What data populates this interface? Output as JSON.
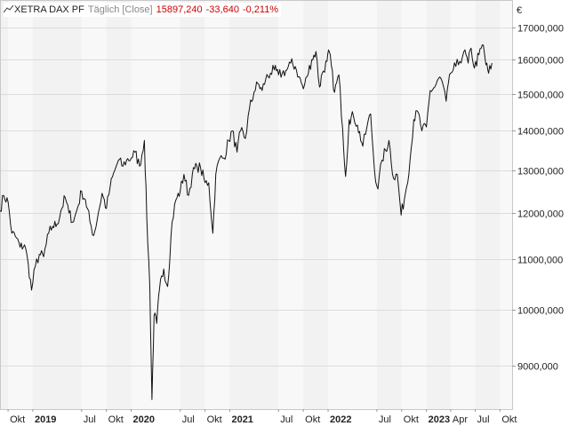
{
  "legend": {
    "instrument": "XETRA DAX PF",
    "interval": "Täglich [Close]",
    "last": "15897,240",
    "change": "-33,640",
    "change_pct": "-0,211%",
    "change_color": "#cc0000"
  },
  "chart_data": {
    "type": "line",
    "title": "XETRA DAX PF",
    "ylabel": "",
    "unit_label": "€",
    "y_scale": "log",
    "ylim": [
      8300,
      17900
    ],
    "xlim": [
      "2018-09-01",
      "2023-11-15"
    ],
    "grid": true,
    "y_ticks": [
      {
        "value": 9000,
        "label": "9000,000"
      },
      {
        "value": 10000,
        "label": "10000,000"
      },
      {
        "value": 11000,
        "label": "11000,000"
      },
      {
        "value": 12000,
        "label": "12000,000"
      },
      {
        "value": 13000,
        "label": "13000,000"
      },
      {
        "value": 14000,
        "label": "14000,000"
      },
      {
        "value": 15000,
        "label": "15000,000"
      },
      {
        "value": 16000,
        "label": "16000,000"
      },
      {
        "value": 17000,
        "label": "17000,000"
      }
    ],
    "x_ticks": [
      {
        "date": "2018-10-01",
        "label": "Okt",
        "bold": false
      },
      {
        "date": "2019-01-01",
        "label": "2019",
        "bold": true
      },
      {
        "date": "2019-07-01",
        "label": "Jul",
        "bold": false
      },
      {
        "date": "2019-10-01",
        "label": "Okt",
        "bold": false
      },
      {
        "date": "2020-01-01",
        "label": "2020",
        "bold": true
      },
      {
        "date": "2020-07-01",
        "label": "Jul",
        "bold": false
      },
      {
        "date": "2020-10-01",
        "label": "Okt",
        "bold": false
      },
      {
        "date": "2021-01-01",
        "label": "2021",
        "bold": true
      },
      {
        "date": "2021-07-01",
        "label": "Jul",
        "bold": false
      },
      {
        "date": "2021-10-01",
        "label": "Okt",
        "bold": false
      },
      {
        "date": "2022-01-01",
        "label": "2022",
        "bold": true
      },
      {
        "date": "2022-07-01",
        "label": "Jul",
        "bold": false
      },
      {
        "date": "2022-10-01",
        "label": "Okt",
        "bold": false
      },
      {
        "date": "2023-01-01",
        "label": "2023",
        "bold": true
      },
      {
        "date": "2023-04-01",
        "label": "Apr",
        "bold": false
      },
      {
        "date": "2023-07-01",
        "label": "Jul",
        "bold": false
      },
      {
        "date": "2023-10-01",
        "label": "Okt",
        "bold": false
      }
    ],
    "series": [
      {
        "color": "#111111",
        "points": [
          [
            "2018-09-01",
            12050
          ],
          [
            "2018-09-15",
            12400
          ],
          [
            "2018-10-01",
            12250
          ],
          [
            "2018-10-15",
            11550
          ],
          [
            "2018-11-01",
            11450
          ],
          [
            "2018-11-15",
            11250
          ],
          [
            "2018-12-01",
            11300
          ],
          [
            "2018-12-15",
            10900
          ],
          [
            "2018-12-27",
            10380
          ],
          [
            "2019-01-10",
            10850
          ],
          [
            "2019-01-25",
            11100
          ],
          [
            "2019-02-10",
            11050
          ],
          [
            "2019-03-01",
            11550
          ],
          [
            "2019-03-15",
            11700
          ],
          [
            "2019-04-01",
            11750
          ],
          [
            "2019-04-15",
            12050
          ],
          [
            "2019-05-01",
            12350
          ],
          [
            "2019-05-15",
            12000
          ],
          [
            "2019-06-01",
            11800
          ],
          [
            "2019-06-15",
            12100
          ],
          [
            "2019-07-01",
            12500
          ],
          [
            "2019-07-15",
            12300
          ],
          [
            "2019-08-01",
            11800
          ],
          [
            "2019-08-15",
            11500
          ],
          [
            "2019-09-01",
            12000
          ],
          [
            "2019-09-15",
            12450
          ],
          [
            "2019-10-01",
            12100
          ],
          [
            "2019-10-15",
            12600
          ],
          [
            "2019-11-01",
            13000
          ],
          [
            "2019-11-15",
            13250
          ],
          [
            "2019-12-01",
            13100
          ],
          [
            "2019-12-15",
            13250
          ],
          [
            "2020-01-01",
            13300
          ],
          [
            "2020-01-15",
            13450
          ],
          [
            "2020-02-01",
            13100
          ],
          [
            "2020-02-19",
            13750
          ],
          [
            "2020-02-28",
            11900
          ],
          [
            "2020-03-10",
            10450
          ],
          [
            "2020-03-18",
            8450
          ],
          [
            "2020-03-26",
            9900
          ],
          [
            "2020-04-05",
            9750
          ],
          [
            "2020-04-15",
            10400
          ],
          [
            "2020-05-01",
            10800
          ],
          [
            "2020-05-15",
            10450
          ],
          [
            "2020-06-01",
            11800
          ],
          [
            "2020-06-15",
            12300
          ],
          [
            "2020-07-01",
            12500
          ],
          [
            "2020-07-15",
            12900
          ],
          [
            "2020-08-01",
            12400
          ],
          [
            "2020-08-15",
            12900
          ],
          [
            "2020-09-01",
            13100
          ],
          [
            "2020-09-15",
            13050
          ],
          [
            "2020-10-01",
            12700
          ],
          [
            "2020-10-15",
            12700
          ],
          [
            "2020-10-30",
            11550
          ],
          [
            "2020-11-10",
            12900
          ],
          [
            "2020-11-25",
            13300
          ],
          [
            "2020-12-10",
            13300
          ],
          [
            "2020-12-28",
            13750
          ],
          [
            "2021-01-10",
            14000
          ],
          [
            "2021-01-28",
            13450
          ],
          [
            "2021-02-10",
            14000
          ],
          [
            "2021-02-28",
            13800
          ],
          [
            "2021-03-15",
            14600
          ],
          [
            "2021-04-01",
            15050
          ],
          [
            "2021-04-15",
            15300
          ],
          [
            "2021-05-01",
            15100
          ],
          [
            "2021-05-15",
            15450
          ],
          [
            "2021-06-01",
            15600
          ],
          [
            "2021-06-15",
            15700
          ],
          [
            "2021-07-01",
            15550
          ],
          [
            "2021-07-15",
            15600
          ],
          [
            "2021-08-01",
            15700
          ],
          [
            "2021-08-15",
            15900
          ],
          [
            "2021-09-01",
            15800
          ],
          [
            "2021-09-15",
            15500
          ],
          [
            "2021-10-01",
            15150
          ],
          [
            "2021-10-15",
            15500
          ],
          [
            "2021-11-01",
            16000
          ],
          [
            "2021-11-17",
            16250
          ],
          [
            "2021-11-30",
            15200
          ],
          [
            "2021-12-10",
            15600
          ],
          [
            "2021-12-28",
            15950
          ],
          [
            "2022-01-05",
            16250
          ],
          [
            "2022-01-25",
            15050
          ],
          [
            "2022-02-10",
            15550
          ],
          [
            "2022-02-24",
            14050
          ],
          [
            "2022-03-07",
            12850
          ],
          [
            "2022-03-20",
            14300
          ],
          [
            "2022-04-05",
            14400
          ],
          [
            "2022-04-20",
            14150
          ],
          [
            "2022-05-10",
            13600
          ],
          [
            "2022-05-25",
            14100
          ],
          [
            "2022-06-08",
            14450
          ],
          [
            "2022-06-22",
            13000
          ],
          [
            "2022-07-05",
            12550
          ],
          [
            "2022-07-20",
            13250
          ],
          [
            "2022-08-15",
            13750
          ],
          [
            "2022-09-01",
            12800
          ],
          [
            "2022-09-15",
            12900
          ],
          [
            "2022-09-29",
            11950
          ],
          [
            "2022-10-15",
            12450
          ],
          [
            "2022-11-01",
            13250
          ],
          [
            "2022-11-15",
            14300
          ],
          [
            "2022-12-01",
            14500
          ],
          [
            "2022-12-15",
            14000
          ],
          [
            "2023-01-01",
            14100
          ],
          [
            "2023-01-15",
            15100
          ],
          [
            "2023-02-01",
            15200
          ],
          [
            "2023-02-15",
            15450
          ],
          [
            "2023-03-01",
            15350
          ],
          [
            "2023-03-15",
            14800
          ],
          [
            "2023-04-01",
            15600
          ],
          [
            "2023-04-20",
            15800
          ],
          [
            "2023-05-05",
            15950
          ],
          [
            "2023-05-20",
            16250
          ],
          [
            "2023-06-05",
            15900
          ],
          [
            "2023-06-16",
            16350
          ],
          [
            "2023-06-28",
            15750
          ],
          [
            "2023-07-15",
            16150
          ],
          [
            "2023-07-31",
            16450
          ],
          [
            "2023-08-10",
            15850
          ],
          [
            "2023-08-20",
            15600
          ],
          [
            "2023-09-01",
            15900
          ]
        ]
      }
    ]
  }
}
